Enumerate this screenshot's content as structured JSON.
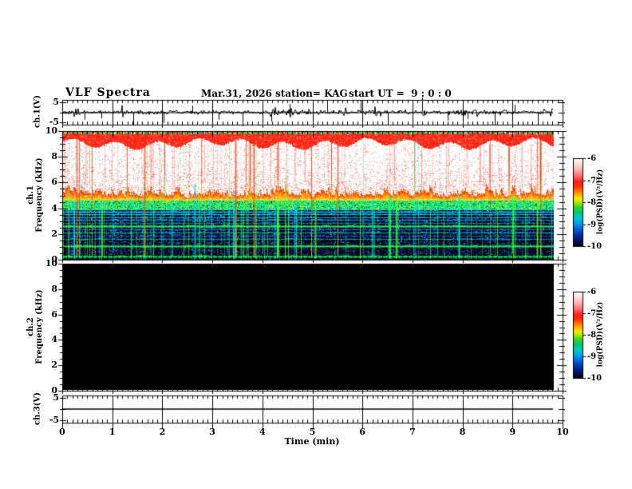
{
  "header": {
    "title": "VLF Spectra",
    "date": "Mar.31, 2026",
    "station": "station= KAG",
    "start_ut": "start UT =  9 : 0 : 0"
  },
  "time_axis": {
    "label": "Time (min)",
    "ticks": [
      "0",
      "1",
      "2",
      "3",
      "4",
      "5",
      "6",
      "7",
      "8",
      "9",
      "10"
    ]
  },
  "panels": [
    {
      "id": "ch1_voltage",
      "ylabel": "ch.1(V)",
      "yticks": [
        "5",
        "-5"
      ],
      "ylim": [
        -6,
        6
      ]
    },
    {
      "id": "ch1_spectrogram",
      "ylabel_line1": "ch.1",
      "ylabel_line2": "Frequency (kHz)",
      "yticks": [
        "10",
        "8",
        "6",
        "4",
        "2",
        "0"
      ],
      "ylim": [
        0,
        10
      ]
    },
    {
      "id": "ch2_spectrogram",
      "ylabel_line1": "ch.2",
      "ylabel_line2": "Frequency (kHz)",
      "yticks": [
        "10",
        "8",
        "6",
        "4",
        "2",
        "0"
      ],
      "ylim": [
        0,
        10
      ]
    },
    {
      "id": "ch3_voltage",
      "ylabel": "ch.3(V)",
      "yticks": [
        "5",
        "-5"
      ],
      "ylim": [
        -6,
        6
      ]
    }
  ],
  "colorbars": [
    {
      "id": "cb_ch1",
      "unit_label": "log(PSD)(V²/Hz)",
      "ticks": [
        "-6",
        "-7",
        "-8",
        "-9",
        "-10"
      ],
      "range": [
        -6,
        -10
      ]
    },
    {
      "id": "cb_ch2",
      "unit_label": "log(PSD)(V²/Hz)",
      "ticks": [
        "-6",
        "-7",
        "-8",
        "-9",
        "-10"
      ],
      "range": [
        -6,
        -10
      ]
    }
  ],
  "colormap": {
    "stops": [
      [
        0,
        "#ffffff"
      ],
      [
        0.07,
        "#ffdcdc"
      ],
      [
        0.14,
        "#ffaaaa"
      ],
      [
        0.21,
        "#ff6666"
      ],
      [
        0.27,
        "#ff1a1a"
      ],
      [
        0.33,
        "#ff3c00"
      ],
      [
        0.4,
        "#ff9900"
      ],
      [
        0.46,
        "#ffe800"
      ],
      [
        0.51,
        "#9ae800"
      ],
      [
        0.56,
        "#2ed22e"
      ],
      [
        0.62,
        "#00c878"
      ],
      [
        0.68,
        "#00c8c8"
      ],
      [
        0.74,
        "#00a0e8"
      ],
      [
        0.8,
        "#0064dc"
      ],
      [
        0.87,
        "#0032a0"
      ],
      [
        0.94,
        "#001264"
      ],
      [
        1,
        "#000014"
      ]
    ]
  },
  "chart_data": [
    {
      "type": "line",
      "panel": "ch1_voltage",
      "x_unit": "min",
      "x_range": [
        0,
        9.8
      ],
      "y_unit": "V",
      "baseline_V": 0,
      "noise_amplitude_V": 0.5,
      "spikes": [
        {
          "t": 0.45,
          "V": -1.8
        },
        {
          "t": 0.78,
          "V": -1.5
        },
        {
          "t": 1.42,
          "V": -3.2
        },
        {
          "t": 2.02,
          "V": -2.6
        },
        {
          "t": 2.6,
          "V": 1.6
        },
        {
          "t": 3.12,
          "V": -1.8
        },
        {
          "t": 3.6,
          "V": -3.4
        },
        {
          "t": 4.18,
          "V": -2.2
        },
        {
          "t": 4.55,
          "V": 2.0
        },
        {
          "t": 5.0,
          "V": -2.0
        },
        {
          "t": 5.3,
          "V": 2.2
        },
        {
          "t": 5.97,
          "V": 2.8
        },
        {
          "t": 6.5,
          "V": -2.4
        },
        {
          "t": 7.2,
          "V": 3.6
        },
        {
          "t": 7.7,
          "V": -2.0
        },
        {
          "t": 8.1,
          "V": -1.6
        },
        {
          "t": 8.65,
          "V": -3.0
        },
        {
          "t": 9.05,
          "V": 1.8
        },
        {
          "t": 9.5,
          "V": -2.2
        }
      ]
    },
    {
      "type": "heatmap",
      "panel": "ch1_spectrogram",
      "x_range": [
        0,
        9.8
      ],
      "f_range_khz": [
        0,
        10
      ],
      "intensity_scale": "log(PSD)(V²/Hz)",
      "scale_range": [
        -10,
        -6
      ],
      "bands": [
        {
          "f": [
            9.85,
            10.0
          ],
          "description": "speckled multicolor top edge row"
        },
        {
          "f": [
            9.1,
            9.85
          ],
          "level": -7,
          "color": "#ff1a00",
          "description": "strong red band with wavy lower edge"
        },
        {
          "f": [
            5.0,
            9.1
          ],
          "level": -6,
          "color": "#ffffff",
          "description": "saturated white zone with red speckle and red vertical streak clusters; jagged lower boundary 4.7-6.8 kHz"
        },
        {
          "f": [
            4.6,
            5.0
          ],
          "level": -7,
          "color": "#ff9900",
          "description": "red-to-yellow fringe under white zone"
        },
        {
          "f": [
            3.95,
            4.62
          ],
          "level": -8,
          "color": "#2ed22e",
          "description": "bright green/cyan band"
        },
        {
          "f": [
            0,
            3.95
          ],
          "level": -9.6,
          "color": "#000a20",
          "description": "dark navy/black noise floor with blue speckle"
        }
      ],
      "horizontal_lines": [
        {
          "f_khz": 0.18,
          "color": "#00ff55",
          "alpha": 0.95,
          "w": 2
        },
        {
          "f_khz": 1.0,
          "color": "#22ff44",
          "alpha": 0.9,
          "w": 2
        },
        {
          "f_khz": 1.55,
          "color": "#00ccff",
          "alpha": 0.6,
          "w": 1
        },
        {
          "f_khz": 1.8,
          "color": "#0099ee",
          "alpha": 0.5,
          "w": 1
        },
        {
          "f_khz": 2.1,
          "color": "#00ddee",
          "alpha": 0.7,
          "w": 1
        },
        {
          "f_khz": 2.35,
          "color": "#00aaff",
          "alpha": 0.5,
          "w": 1
        },
        {
          "f_khz": 2.6,
          "color": "#22ff55",
          "alpha": 0.95,
          "w": 2
        },
        {
          "f_khz": 2.85,
          "color": "#00bbff",
          "alpha": 0.5,
          "w": 1
        },
        {
          "f_khz": 3.1,
          "color": "#00ddee",
          "alpha": 0.7,
          "w": 1
        },
        {
          "f_khz": 3.3,
          "color": "#00ccff",
          "alpha": 0.75,
          "w": 1
        },
        {
          "f_khz": 3.5,
          "color": "#00e0ff",
          "alpha": 0.8,
          "w": 1
        },
        {
          "f_khz": 3.7,
          "color": "#00ccee",
          "alpha": 0.8,
          "w": 2
        },
        {
          "f_khz": 3.9,
          "color": "#44ffcc",
          "alpha": 0.8,
          "w": 1
        }
      ],
      "vertical_streaks": {
        "green_count": 85,
        "green_full_height_count": 12,
        "red_count": 22,
        "white_zone_red_texture_count": 60
      }
    },
    {
      "type": "heatmap",
      "panel": "ch2_spectrogram",
      "x_range": [
        0,
        9.8
      ],
      "f_range_khz": [
        0,
        10
      ],
      "uniform_level": -10,
      "color": "#000000",
      "description": "no signal above threshold - entire spectrogram black"
    },
    {
      "type": "line",
      "panel": "ch3_voltage",
      "x_range": [
        0,
        9.8
      ],
      "y_unit": "V",
      "constant_V": 0
    }
  ],
  "seed": 20260331
}
